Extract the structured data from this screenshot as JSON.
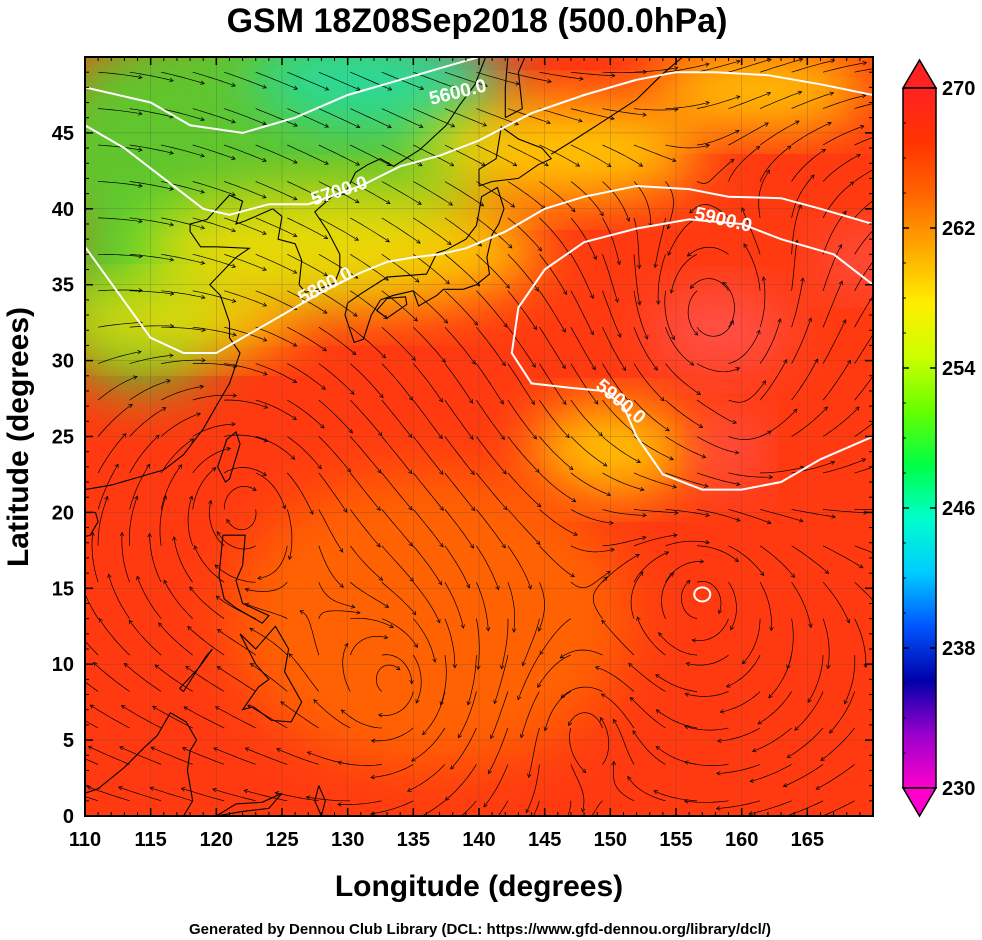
{
  "title": "GSM 18Z08Sep2018 (500.0hPa)",
  "xlabel": "Longitude (degrees)",
  "ylabel": "Latitude  (degrees)",
  "footer": "Generated by Dennou Club Library (DCL: https://www.gfd-dennou.org/library/dcl/)",
  "x_range": [
    110,
    170
  ],
  "y_range": [
    0,
    50
  ],
  "x_ticks": [
    "110",
    "115",
    "120",
    "125",
    "130",
    "135",
    "140",
    "145",
    "150",
    "155",
    "160",
    "165"
  ],
  "y_ticks": [
    "0",
    "5",
    "10",
    "15",
    "20",
    "25",
    "30",
    "35",
    "40",
    "45"
  ],
  "colorbar": {
    "range": [
      230,
      270
    ],
    "tick_labels": [
      "270",
      "262",
      "254",
      "246",
      "238",
      "230"
    ],
    "colors": [
      "#ff00cc",
      "#9900cc",
      "#0000aa",
      "#0055ff",
      "#00ccff",
      "#00ffcc",
      "#00ff44",
      "#66ff00",
      "#ccff00",
      "#ffee00",
      "#ffaa00",
      "#ff6600",
      "#ff3300",
      "#ff2222"
    ]
  },
  "contours": [
    {
      "label": "5600.0",
      "value": 5600
    },
    {
      "label": "5700.0",
      "value": 5700
    },
    {
      "label": "5800.0",
      "value": 5800
    },
    {
      "label": "5900.0",
      "value": 5900
    }
  ],
  "field_colors": {
    "green": "#44dd33",
    "cyan": "#22ddaa",
    "yellow": "#ffdd00",
    "orange": "#ff6a00",
    "red": "#ff3a10",
    "hot": "#ff5555"
  }
}
